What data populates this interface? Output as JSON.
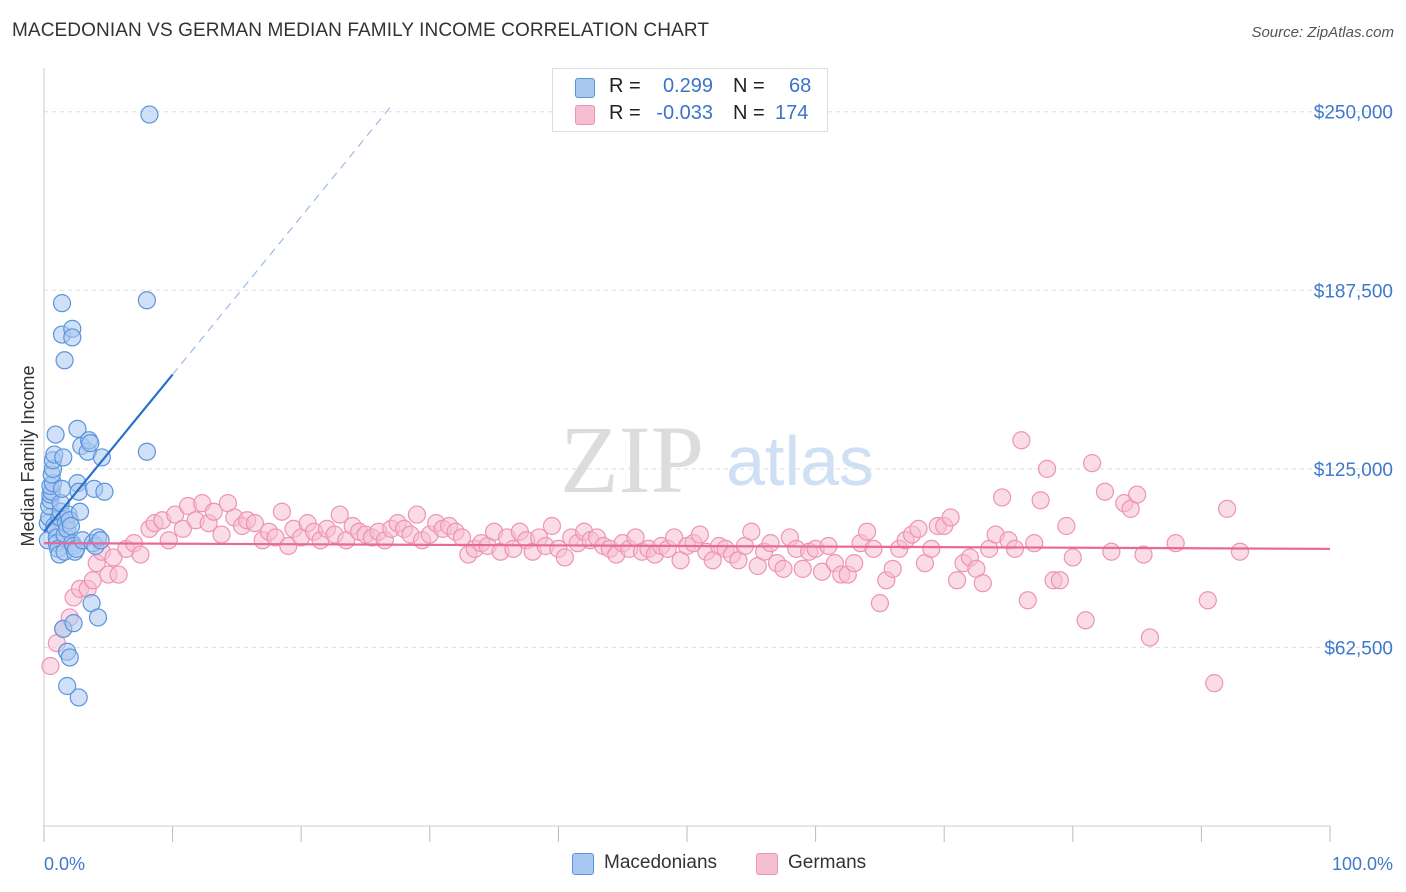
{
  "title": "MACEDONIAN VS GERMAN MEDIAN FAMILY INCOME CORRELATION CHART",
  "source": "Source: ZipAtlas.com",
  "watermark": {
    "zip": "ZIP",
    "atlas": "atlas"
  },
  "legend": {
    "rows": [
      {
        "r_label": "R =",
        "r_value": "0.299",
        "n_label": "N =",
        "n_value": "68"
      },
      {
        "r_label": "R =",
        "r_value": "-0.033",
        "n_label": "N =",
        "n_value": "174"
      }
    ]
  },
  "bottom_legend": {
    "macedonians": "Macedonians",
    "germans": "Germans"
  },
  "colors": {
    "macedonian_fill": "#a9c8f0",
    "macedonian_stroke": "#5b94dc",
    "macedonian_line": "#2a6fcc",
    "german_fill": "#f6bfd1",
    "german_stroke": "#ef93b3",
    "german_line": "#e8689a",
    "axis_text": "#3f78cc",
    "grid": "#dddddd"
  },
  "chart_data": {
    "type": "scatter",
    "title": "MACEDONIAN VS GERMAN MEDIAN FAMILY INCOME CORRELATION CHART",
    "xlabel": "",
    "ylabel": "Median Family Income",
    "xlim": [
      0,
      100
    ],
    "ylim": [
      0,
      262500
    ],
    "x_tick_labels": [
      "0.0%",
      "100.0%"
    ],
    "y_ticks": [
      62500,
      125000,
      187500,
      250000
    ],
    "y_tick_labels": [
      "$62,500",
      "$125,000",
      "$187,500",
      "$250,000"
    ],
    "legend_position": "top-center",
    "series": [
      {
        "name": "Macedonians",
        "R": 0.299,
        "N": 68,
        "trend": {
          "x0": 0.0,
          "y0": 103000,
          "x1": 10.0,
          "y1": 158000,
          "dash_to_x": 27.0,
          "dash_to_y": 252000
        },
        "points": [
          [
            0.3,
            100000
          ],
          [
            0.3,
            106000
          ],
          [
            0.4,
            108000
          ],
          [
            0.4,
            112000
          ],
          [
            0.5,
            114000
          ],
          [
            0.5,
            116000
          ],
          [
            0.6,
            117000
          ],
          [
            0.5,
            119000
          ],
          [
            0.7,
            120000
          ],
          [
            0.6,
            123000
          ],
          [
            0.7,
            125000
          ],
          [
            0.7,
            128000
          ],
          [
            0.8,
            130000
          ],
          [
            0.9,
            137000
          ],
          [
            0.8,
            105000
          ],
          [
            0.9,
            104000
          ],
          [
            1.0,
            101000
          ],
          [
            1.0,
            99000
          ],
          [
            1.1,
            97000
          ],
          [
            1.2,
            95000
          ],
          [
            1.2,
            108000
          ],
          [
            1.3,
            110000
          ],
          [
            1.3,
            113000
          ],
          [
            1.4,
            118000
          ],
          [
            1.5,
            129000
          ],
          [
            1.6,
            96000
          ],
          [
            1.6,
            102000
          ],
          [
            1.7,
            106000
          ],
          [
            1.8,
            104000
          ],
          [
            1.9,
            109000
          ],
          [
            2.0,
            107000
          ],
          [
            2.1,
            105000
          ],
          [
            2.2,
            99000
          ],
          [
            2.3,
            98000
          ],
          [
            2.4,
            96000
          ],
          [
            2.5,
            97000
          ],
          [
            2.6,
            120000
          ],
          [
            2.7,
            117000
          ],
          [
            2.8,
            110000
          ],
          [
            3.0,
            100000
          ],
          [
            1.4,
            183000
          ],
          [
            1.4,
            172000
          ],
          [
            1.6,
            163000
          ],
          [
            2.2,
            174000
          ],
          [
            2.2,
            171000
          ],
          [
            2.6,
            139000
          ],
          [
            2.9,
            133000
          ],
          [
            3.4,
            131000
          ],
          [
            3.5,
            135000
          ],
          [
            3.6,
            134000
          ],
          [
            3.8,
            99000
          ],
          [
            3.9,
            118000
          ],
          [
            4.0,
            98000
          ],
          [
            4.2,
            101000
          ],
          [
            4.4,
            100000
          ],
          [
            4.5,
            129000
          ],
          [
            4.7,
            117000
          ],
          [
            8.0,
            184000
          ],
          [
            8.2,
            249000
          ],
          [
            8.0,
            131000
          ],
          [
            1.5,
            69000
          ],
          [
            1.8,
            61000
          ],
          [
            2.0,
            59000
          ],
          [
            2.3,
            71000
          ],
          [
            2.7,
            45000
          ],
          [
            1.8,
            49000
          ],
          [
            3.7,
            78000
          ],
          [
            4.2,
            73000
          ]
        ]
      },
      {
        "name": "Germans",
        "R": -0.033,
        "N": 174,
        "trend": {
          "x0": 0.0,
          "y0": 99000,
          "x1": 100.0,
          "y1": 97000
        },
        "points": [
          [
            0.5,
            56000
          ],
          [
            1.0,
            64000
          ],
          [
            1.5,
            69000
          ],
          [
            2.0,
            73000
          ],
          [
            2.3,
            80000
          ],
          [
            2.8,
            83000
          ],
          [
            3.4,
            83000
          ],
          [
            3.8,
            86000
          ],
          [
            4.1,
            92000
          ],
          [
            4.5,
            96000
          ],
          [
            5.0,
            88000
          ],
          [
            5.4,
            94000
          ],
          [
            5.8,
            88000
          ],
          [
            6.4,
            97000
          ],
          [
            7.0,
            99000
          ],
          [
            7.5,
            95000
          ],
          [
            8.2,
            104000
          ],
          [
            8.6,
            106000
          ],
          [
            9.2,
            107000
          ],
          [
            9.7,
            100000
          ],
          [
            10.2,
            109000
          ],
          [
            10.8,
            104000
          ],
          [
            11.2,
            112000
          ],
          [
            11.8,
            107000
          ],
          [
            12.3,
            113000
          ],
          [
            12.8,
            106000
          ],
          [
            13.2,
            110000
          ],
          [
            13.8,
            102000
          ],
          [
            14.3,
            113000
          ],
          [
            14.8,
            108000
          ],
          [
            15.4,
            105000
          ],
          [
            15.8,
            107000
          ],
          [
            16.4,
            106000
          ],
          [
            17.0,
            100000
          ],
          [
            17.5,
            103000
          ],
          [
            18.0,
            101000
          ],
          [
            18.5,
            110000
          ],
          [
            19.0,
            98000
          ],
          [
            19.4,
            104000
          ],
          [
            20.0,
            101000
          ],
          [
            20.5,
            106000
          ],
          [
            21.0,
            103000
          ],
          [
            21.5,
            100000
          ],
          [
            22.0,
            104000
          ],
          [
            22.6,
            102000
          ],
          [
            23.0,
            109000
          ],
          [
            23.5,
            100000
          ],
          [
            24.0,
            105000
          ],
          [
            24.5,
            103000
          ],
          [
            25.0,
            102000
          ],
          [
            25.5,
            101000
          ],
          [
            26.0,
            103000
          ],
          [
            26.5,
            100000
          ],
          [
            27.0,
            104000
          ],
          [
            27.5,
            106000
          ],
          [
            28.0,
            104000
          ],
          [
            28.5,
            102000
          ],
          [
            29.0,
            109000
          ],
          [
            29.4,
            100000
          ],
          [
            30.0,
            102000
          ],
          [
            30.5,
            106000
          ],
          [
            31.0,
            104000
          ],
          [
            31.5,
            105000
          ],
          [
            32.0,
            103000
          ],
          [
            32.5,
            101000
          ],
          [
            33.0,
            95000
          ],
          [
            33.5,
            97000
          ],
          [
            34.0,
            99000
          ],
          [
            34.5,
            98000
          ],
          [
            35.0,
            103000
          ],
          [
            35.5,
            96000
          ],
          [
            36.0,
            101000
          ],
          [
            36.5,
            97000
          ],
          [
            37.0,
            103000
          ],
          [
            37.5,
            100000
          ],
          [
            38.0,
            96000
          ],
          [
            38.5,
            101000
          ],
          [
            39.0,
            98000
          ],
          [
            39.5,
            105000
          ],
          [
            40.0,
            97000
          ],
          [
            40.5,
            94000
          ],
          [
            41.0,
            101000
          ],
          [
            41.5,
            99000
          ],
          [
            42.0,
            103000
          ],
          [
            42.5,
            100000
          ],
          [
            43.0,
            101000
          ],
          [
            43.5,
            98000
          ],
          [
            44.0,
            97000
          ],
          [
            44.5,
            95000
          ],
          [
            45.0,
            99000
          ],
          [
            45.5,
            97000
          ],
          [
            46.0,
            101000
          ],
          [
            46.5,
            96000
          ],
          [
            47.0,
            97000
          ],
          [
            47.5,
            95000
          ],
          [
            48.0,
            98000
          ],
          [
            48.5,
            97000
          ],
          [
            49.0,
            101000
          ],
          [
            49.5,
            93000
          ],
          [
            50.0,
            98000
          ],
          [
            50.5,
            99000
          ],
          [
            51.0,
            102000
          ],
          [
            51.5,
            96000
          ],
          [
            52.0,
            93000
          ],
          [
            52.5,
            98000
          ],
          [
            53.0,
            97000
          ],
          [
            53.5,
            95000
          ],
          [
            54.0,
            93000
          ],
          [
            54.5,
            98000
          ],
          [
            55.0,
            103000
          ],
          [
            55.5,
            91000
          ],
          [
            56.0,
            96000
          ],
          [
            56.5,
            99000
          ],
          [
            57.0,
            92000
          ],
          [
            57.5,
            90000
          ],
          [
            58.0,
            101000
          ],
          [
            58.5,
            97000
          ],
          [
            59.0,
            90000
          ],
          [
            59.5,
            96000
          ],
          [
            60.0,
            97000
          ],
          [
            60.5,
            89000
          ],
          [
            61.0,
            98000
          ],
          [
            61.5,
            92000
          ],
          [
            62.0,
            88000
          ],
          [
            62.5,
            88000
          ],
          [
            63.0,
            92000
          ],
          [
            63.5,
            99000
          ],
          [
            64.0,
            103000
          ],
          [
            64.5,
            97000
          ],
          [
            65.0,
            78000
          ],
          [
            65.5,
            86000
          ],
          [
            66.0,
            90000
          ],
          [
            66.5,
            97000
          ],
          [
            67.0,
            100000
          ],
          [
            67.5,
            102000
          ],
          [
            68.0,
            104000
          ],
          [
            68.5,
            92000
          ],
          [
            69.0,
            97000
          ],
          [
            69.5,
            105000
          ],
          [
            70.0,
            105000
          ],
          [
            70.5,
            108000
          ],
          [
            71.0,
            86000
          ],
          [
            71.5,
            92000
          ],
          [
            72.0,
            94000
          ],
          [
            72.5,
            90000
          ],
          [
            73.0,
            85000
          ],
          [
            73.5,
            97000
          ],
          [
            74.0,
            102000
          ],
          [
            74.5,
            115000
          ],
          [
            75.0,
            100000
          ],
          [
            75.5,
            97000
          ],
          [
            76.0,
            135000
          ],
          [
            76.5,
            79000
          ],
          [
            77.0,
            99000
          ],
          [
            77.5,
            114000
          ],
          [
            78.0,
            125000
          ],
          [
            78.5,
            86000
          ],
          [
            79.0,
            86000
          ],
          [
            79.5,
            105000
          ],
          [
            80.0,
            94000
          ],
          [
            81.0,
            72000
          ],
          [
            81.5,
            127000
          ],
          [
            82.5,
            117000
          ],
          [
            84.0,
            113000
          ],
          [
            84.5,
            111000
          ],
          [
            85.0,
            116000
          ],
          [
            85.5,
            95000
          ],
          [
            86.0,
            66000
          ],
          [
            88.0,
            99000
          ],
          [
            90.5,
            79000
          ],
          [
            91.0,
            50000
          ],
          [
            92.0,
            111000
          ],
          [
            93.0,
            96000
          ],
          [
            83.0,
            96000
          ]
        ]
      }
    ]
  }
}
